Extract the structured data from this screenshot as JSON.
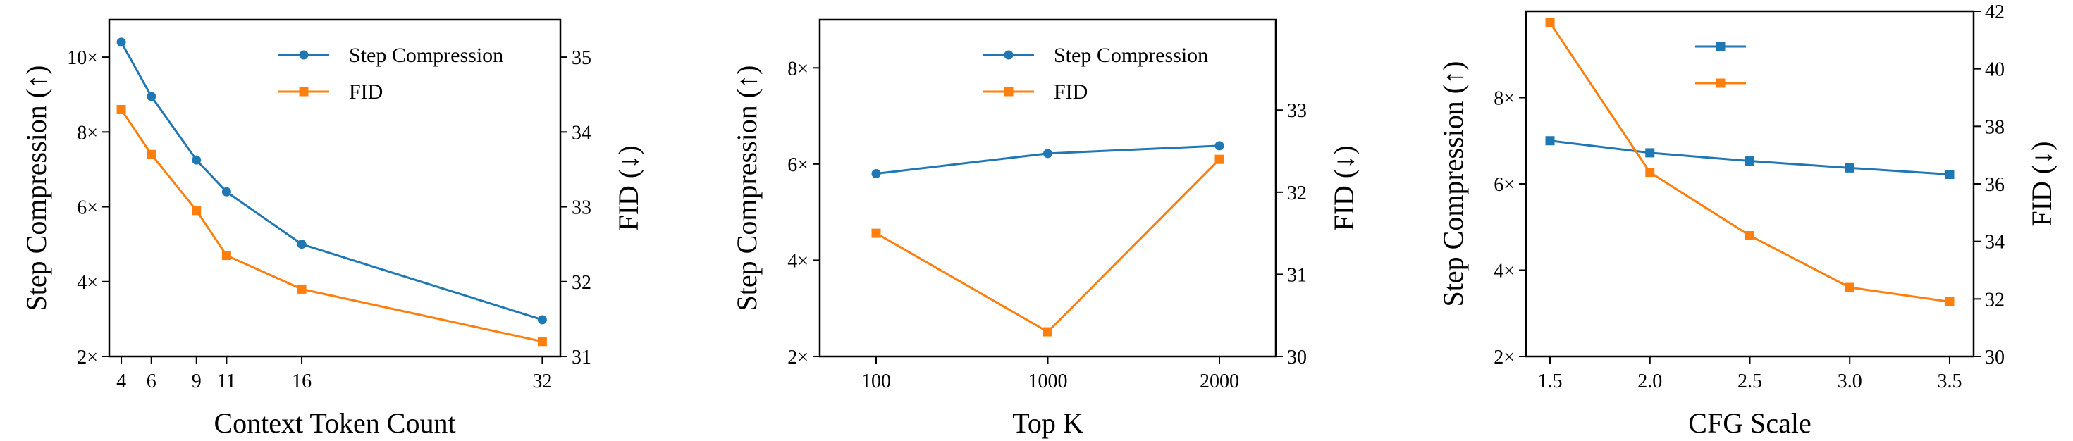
{
  "colors": {
    "step": "#1f77b4",
    "fid": "#ff7f0e"
  },
  "chart_data": [
    {
      "type": "line",
      "xlabel": "Context Token Count",
      "ylabel_left": "Step Compression (↑)",
      "ylabel_right": "FID (↓)",
      "x": [
        4,
        6,
        9,
        11,
        16,
        32
      ],
      "xticks": [
        "4",
        "6",
        "9",
        "11",
        "16",
        "32"
      ],
      "yleft_ticks": [
        "2×",
        "4×",
        "6×",
        "8×",
        "10×"
      ],
      "yright_ticks": [
        "31",
        "32",
        "33",
        "34",
        "35"
      ],
      "yleft_lim": [
        2,
        11
      ],
      "yright_lim": [
        31,
        35.5
      ],
      "series": [
        {
          "name": "Step Compression",
          "axis": "left",
          "marker": "circle",
          "values": [
            10.4,
            8.95,
            7.25,
            6.4,
            5.0,
            2.98
          ]
        },
        {
          "name": "FID",
          "axis": "right",
          "marker": "square",
          "values": [
            34.3,
            33.7,
            32.95,
            32.35,
            31.9,
            31.2
          ]
        }
      ],
      "legend": "top-right"
    },
    {
      "type": "line",
      "xlabel": "Top K",
      "ylabel_left": "Step Compression (↑)",
      "ylabel_right": "FID (↓)",
      "x": [
        100,
        1000,
        2000
      ],
      "xticks": [
        "100",
        "1000",
        "2000"
      ],
      "yleft_ticks": [
        "2×",
        "4×",
        "6×",
        "8×"
      ],
      "yright_ticks": [
        "30",
        "31",
        "32",
        "33"
      ],
      "yleft_lim": [
        2,
        9
      ],
      "yright_lim": [
        30,
        34.1
      ],
      "series": [
        {
          "name": "Step Compression",
          "axis": "left",
          "marker": "circle",
          "values": [
            5.8,
            6.22,
            6.38
          ]
        },
        {
          "name": "FID",
          "axis": "right",
          "marker": "square",
          "values": [
            31.5,
            30.3,
            32.4
          ]
        }
      ],
      "legend": "top-right"
    },
    {
      "type": "line",
      "xlabel": "CFG Scale",
      "ylabel_left": "Step Compression (↑)",
      "ylabel_right": "FID (↓)",
      "x": [
        1.5,
        2.0,
        2.5,
        3.0,
        3.5
      ],
      "xticks": [
        "1.5",
        "2.0",
        "2.5",
        "3.0",
        "3.5"
      ],
      "yleft_ticks": [
        "2×",
        "4×",
        "6×",
        "8×"
      ],
      "yright_ticks": [
        "30",
        "32",
        "34",
        "36",
        "38",
        "40",
        "42"
      ],
      "yleft_lim": [
        2,
        10
      ],
      "yright_lim": [
        30,
        42
      ],
      "series": [
        {
          "name": "",
          "axis": "left",
          "marker": "square",
          "values": [
            7.0,
            6.72,
            6.53,
            6.37,
            6.22
          ]
        },
        {
          "name": "",
          "axis": "right",
          "marker": "square",
          "values": [
            41.6,
            36.4,
            34.2,
            32.4,
            31.9
          ]
        }
      ],
      "legend": "top-center"
    }
  ]
}
